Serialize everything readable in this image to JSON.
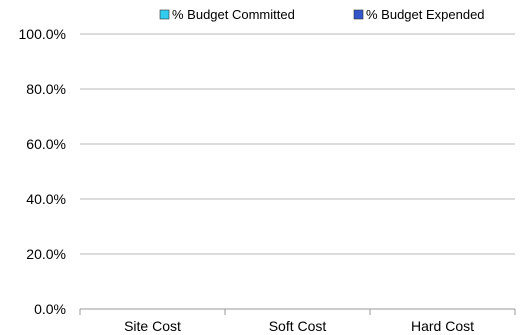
{
  "chart_data": {
    "type": "bar",
    "categories": [
      "Site Cost",
      "Soft Cost",
      "Hard Cost"
    ],
    "series": [
      {
        "name": "% Budget Committed",
        "values": [
          0,
          0,
          0
        ],
        "color": "#33ccee"
      },
      {
        "name": "% Budget Expended",
        "values": [
          0,
          0,
          0
        ],
        "color": "#3355cc"
      }
    ],
    "yticks": [
      "0.0%",
      "20.0%",
      "40.0%",
      "60.0%",
      "80.0%",
      "100.0%"
    ],
    "ylim": [
      0,
      100
    ],
    "grid": true,
    "legend_position": "top"
  },
  "colors": {
    "gridline": "#b8b8b8",
    "axis": "#999999"
  }
}
